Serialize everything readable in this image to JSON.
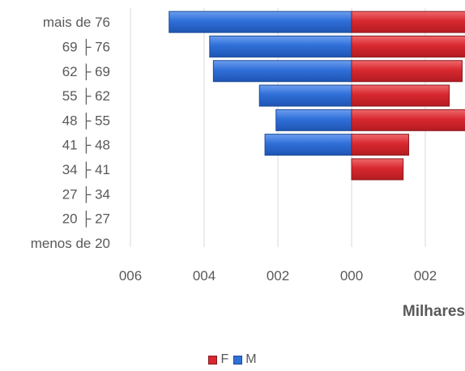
{
  "chart_data": {
    "type": "bar",
    "orientation": "horizontal",
    "subtype": "population-pyramid",
    "categories": [
      "mais de 76",
      "69 ├ 76",
      "62 ├ 69",
      "55 ├ 62",
      "48 ├ 55",
      "41 ├ 48",
      "34 ├ 41",
      "27 ├ 34",
      "20 ├ 27",
      "menos de 20"
    ],
    "series": [
      {
        "name": "M",
        "color": "#2f6fd8",
        "values": [
          -4.95,
          -3.85,
          -3.75,
          -2.5,
          -2.05,
          -2.35,
          0,
          0,
          0,
          0
        ]
      },
      {
        "name": "F",
        "color": "#d8282f",
        "values": [
          3.1,
          3.1,
          3.0,
          2.65,
          3.1,
          1.55,
          1.4,
          0,
          0,
          0
        ]
      }
    ],
    "x_ticks": [
      {
        "value": -6,
        "label": "006"
      },
      {
        "value": -4,
        "label": "004"
      },
      {
        "value": -2,
        "label": "002"
      },
      {
        "value": 0,
        "label": "000"
      },
      {
        "value": 2,
        "label": "002"
      }
    ],
    "xlim": [
      -6,
      3
    ],
    "xlabel": "Milhares",
    "grid": true,
    "legend_position": "bottom"
  },
  "legend": {
    "items": [
      {
        "name": "F",
        "color": "#d8282f"
      },
      {
        "name": "M",
        "color": "#2f6fd8"
      }
    ]
  }
}
